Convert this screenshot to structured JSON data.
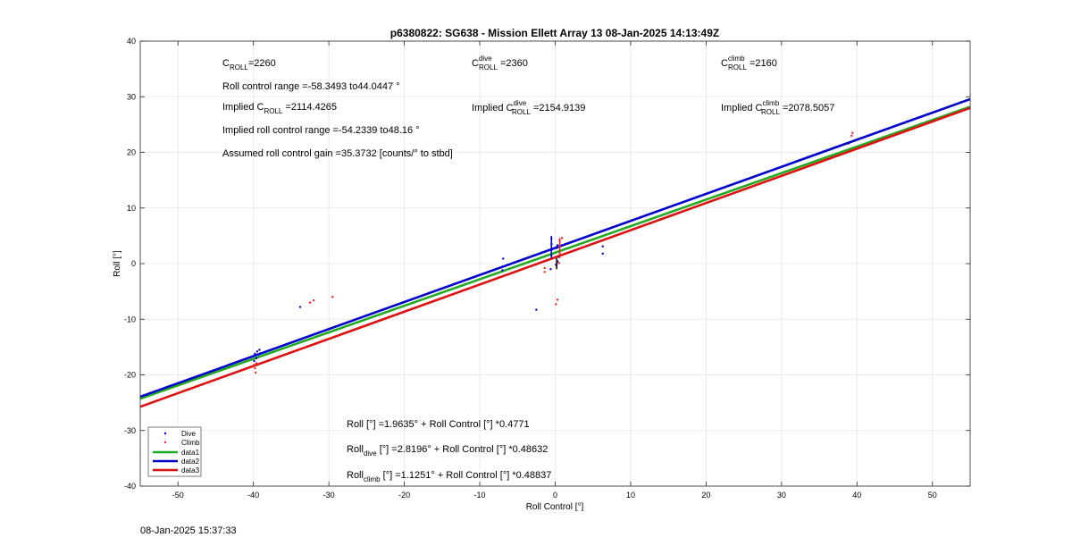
{
  "chart_data": {
    "type": "scatter",
    "title": "p6380822: SG638 - Mission Ellett Array 13 08-Jan-2025 14:13:49Z",
    "xlabel": "Roll Control [°]",
    "ylabel": "Roll [°]",
    "xlim": [
      -55,
      55
    ],
    "ylim": [
      -40,
      40
    ],
    "xticks": [
      -50,
      -40,
      -30,
      -20,
      -10,
      0,
      10,
      20,
      30,
      40,
      50
    ],
    "yticks": [
      -40,
      -30,
      -20,
      -10,
      0,
      10,
      20,
      30,
      40
    ],
    "grid": true,
    "legend_placement": "bottom-left",
    "series": [
      {
        "name": "Dive",
        "kind": "points",
        "color": "#0000cc",
        "points": [
          [
            -39.8,
            -16.2
          ],
          [
            -39.5,
            -15.8
          ],
          [
            -39.6,
            -17.0
          ],
          [
            -39.9,
            -17.5
          ],
          [
            -39.2,
            -15.5
          ],
          [
            -33.8,
            -7.8
          ],
          [
            -6.9,
            0.9
          ],
          [
            -2.5,
            -8.3
          ],
          [
            -7.0,
            -1.2
          ],
          [
            -0.6,
            -1.0
          ],
          [
            -0.5,
            1.5
          ],
          [
            -0.5,
            2.5
          ],
          [
            -0.5,
            3.5
          ],
          [
            -0.5,
            4.5
          ],
          [
            0.1,
            -0.2
          ],
          [
            0.3,
            0.4
          ],
          [
            0.2,
            2.8
          ],
          [
            0.3,
            3.3
          ],
          [
            0.5,
            1.2
          ],
          [
            6.3,
            3.1
          ],
          [
            6.3,
            1.8
          ],
          [
            38.9,
            21.6
          ]
        ]
      },
      {
        "name": "Climb",
        "kind": "points",
        "color": "#ee2222",
        "points": [
          [
            -39.8,
            -18.8
          ],
          [
            -39.7,
            -19.6
          ],
          [
            -39.9,
            -18.2
          ],
          [
            -39.6,
            -17.9
          ],
          [
            -32.5,
            -7.0
          ],
          [
            -32.0,
            -6.6
          ],
          [
            -29.5,
            -6.0
          ],
          [
            -1.4,
            -0.8
          ],
          [
            -1.4,
            -1.5
          ],
          [
            0.1,
            -7.3
          ],
          [
            0.3,
            -6.5
          ],
          [
            0.6,
            3.2
          ],
          [
            0.6,
            4.2
          ],
          [
            0.9,
            4.6
          ],
          [
            0.5,
            0.1
          ],
          [
            39.3,
            23.0
          ],
          [
            39.4,
            23.5
          ]
        ]
      },
      {
        "name": "data1",
        "kind": "line",
        "color": "#22aa22",
        "intercept": 1.9635,
        "slope": 0.4771
      },
      {
        "name": "data2",
        "kind": "line",
        "color": "#0000cc",
        "intercept": 2.8196,
        "slope": 0.48632
      },
      {
        "name": "data3",
        "kind": "line",
        "color": "#dd1111",
        "intercept": 1.1251,
        "slope": 0.48837
      }
    ],
    "annotations": {
      "c_roll": {
        "main": "C",
        "sub": "ROLL",
        "value": "=2260"
      },
      "roll_range": "Roll control range =-58.3493 to44.0447 °",
      "implied_c_roll": {
        "pre": "Implied C",
        "sub": "ROLL",
        "value": " =2114.4265"
      },
      "implied_range": "Implied roll control range =-54.2339 to48.16 °",
      "gain": "Assumed roll control gain =35.3732 [counts/° to stbd]",
      "c_dive": {
        "main": "C",
        "sup": "dive",
        "sub": "ROLL",
        "value": " =2360"
      },
      "implied_c_dive": {
        "pre": "Implied C",
        "sup": "dive",
        "sub": "ROLL",
        "value": " =2154.9139"
      },
      "c_climb": {
        "main": "C",
        "sup": "climb",
        "sub": "ROLL",
        "value": " =2160"
      },
      "implied_c_climb": {
        "pre": "Implied C",
        "sup": "climb",
        "sub": "ROLL",
        "value": " =2078.5057"
      },
      "fit_all": "Roll [°] =1.9635° + Roll Control [°] *0.4771",
      "fit_dive": {
        "pre": "Roll",
        "sub": "dive",
        "post": " [°] =2.8196° + Roll Control [°] *0.48632"
      },
      "fit_climb": {
        "pre": "Roll",
        "sub": "climb",
        "post": " [°] =1.1251° + Roll Control [°] *0.48837"
      }
    }
  },
  "footer": {
    "timestamp": "08-Jan-2025 15:37:33"
  }
}
